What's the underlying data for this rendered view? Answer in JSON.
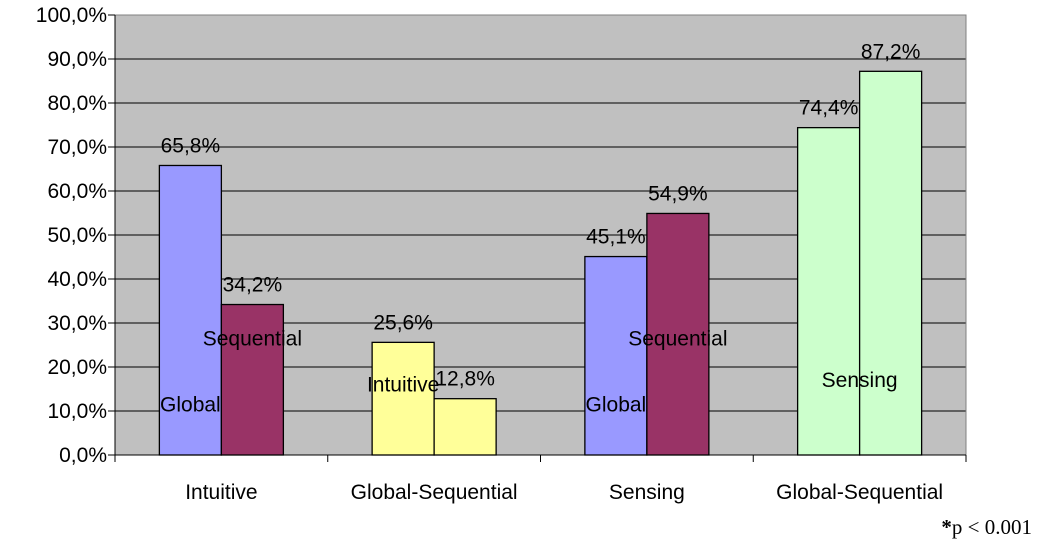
{
  "chart_data": {
    "type": "bar",
    "title": "",
    "xlabel": "",
    "ylabel": "",
    "ylim": [
      0,
      100
    ],
    "yticks": [
      "0,0%",
      "10,0%",
      "20,0%",
      "30,0%",
      "40,0%",
      "50,0%",
      "60,0%",
      "70,0%",
      "80,0%",
      "90,0%",
      "100,0%"
    ],
    "grid": true,
    "plot_background": "#c0c0c0",
    "categories": [
      "Intuitive",
      "Global-Sequential",
      "Sensing",
      "Global-Sequential"
    ],
    "groups": [
      {
        "category": "Intuitive",
        "bars": [
          {
            "value": 65.8,
            "label": "65,8%",
            "inner_label": "Global",
            "color": "#9999ff"
          },
          {
            "value": 34.2,
            "label": "34,2%",
            "inner_label": "Sequential",
            "color": "#993366"
          }
        ]
      },
      {
        "category": "Global-Sequential",
        "bars": [
          {
            "value": 25.6,
            "label": "25,6%",
            "inner_label": "Intuitive",
            "color": "#ffff99"
          },
          {
            "value": 12.8,
            "label": "12,8%",
            "inner_label": "",
            "color": "#ffff99"
          }
        ]
      },
      {
        "category": "Sensing",
        "bars": [
          {
            "value": 45.1,
            "label": "45,1%",
            "inner_label": "Global",
            "color": "#9999ff"
          },
          {
            "value": 54.9,
            "label": "54,9%",
            "inner_label": "Sequential",
            "color": "#993366"
          }
        ]
      },
      {
        "category": "Global-Sequential",
        "bars": [
          {
            "value": 74.4,
            "label": "74,4%",
            "inner_label": "Sensing",
            "color": "#ccffcc"
          },
          {
            "value": 87.2,
            "label": "87,2%",
            "inner_label": "",
            "color": "#ccffcc"
          }
        ]
      }
    ]
  },
  "footnote": {
    "star": "*",
    "text": "p < 0.001"
  }
}
